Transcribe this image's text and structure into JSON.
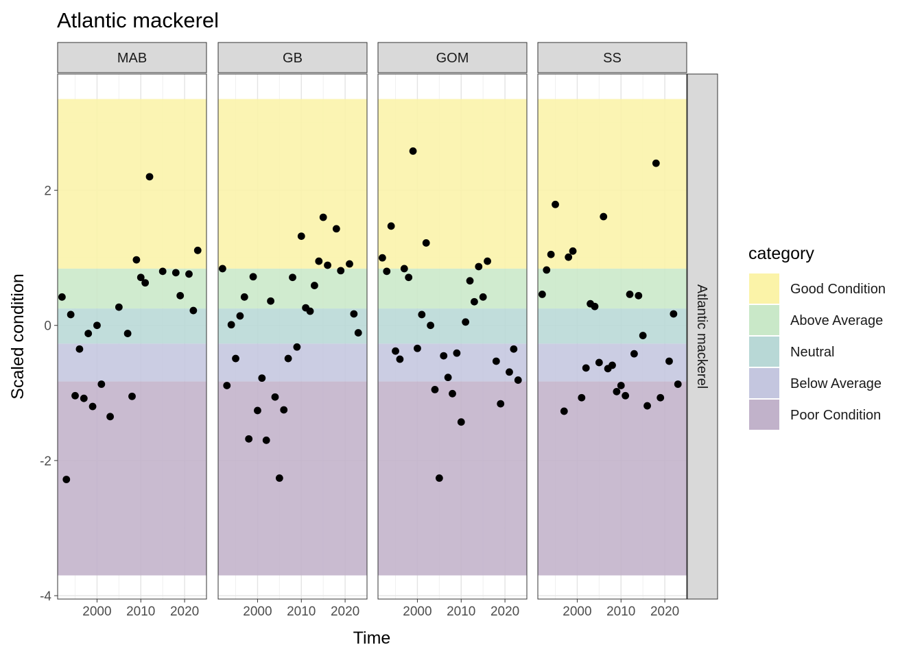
{
  "chart_data": {
    "type": "scatter",
    "title": "Atlantic mackerel",
    "xlabel": "Time",
    "ylabel": "Scaled condition",
    "row_strip": "Atlantic mackerel",
    "xlim": [
      1991,
      2025
    ],
    "ylim": [
      -4.05,
      3.72
    ],
    "x_ticks": [
      2000,
      2010,
      2020
    ],
    "y_ticks": [
      -4,
      -2,
      0,
      2
    ],
    "y_tick_labels": [
      "-4",
      "-2",
      "0",
      "2"
    ],
    "grid": true,
    "legend": {
      "title": "category",
      "position": "right"
    },
    "bands": [
      {
        "name": "Good Condition",
        "from": 0.84,
        "to": 3.35,
        "color": "#FBF3A8"
      },
      {
        "name": "Above Average",
        "from": 0.25,
        "to": 0.84,
        "color": "#C9E8C8"
      },
      {
        "name": "Neutral",
        "from": -0.27,
        "to": 0.25,
        "color": "#B8D8D6"
      },
      {
        "name": "Below Average",
        "from": -0.83,
        "to": -0.27,
        "color": "#C4C6DF"
      },
      {
        "name": "Poor Condition",
        "from": -3.7,
        "to": -0.83,
        "color": "#C1B2CA"
      }
    ],
    "panels": [
      {
        "name": "MAB",
        "points": [
          [
            1992,
            0.42
          ],
          [
            1993,
            -2.28
          ],
          [
            1994,
            0.16
          ],
          [
            1995,
            -1.04
          ],
          [
            1996,
            -0.35
          ],
          [
            1997,
            -1.08
          ],
          [
            1998,
            -0.12
          ],
          [
            1999,
            -1.2
          ],
          [
            2000,
            0.0
          ],
          [
            2001,
            -0.87
          ],
          [
            2003,
            -1.35
          ],
          [
            2005,
            0.27
          ],
          [
            2007,
            -0.12
          ],
          [
            2008,
            -1.05
          ],
          [
            2009,
            0.97
          ],
          [
            2010,
            0.71
          ],
          [
            2011,
            0.63
          ],
          [
            2012,
            2.2
          ],
          [
            2015,
            0.8
          ],
          [
            2018,
            0.78
          ],
          [
            2019,
            0.44
          ],
          [
            2021,
            0.76
          ],
          [
            2022,
            0.22
          ],
          [
            2023,
            1.11
          ]
        ]
      },
      {
        "name": "GB",
        "points": [
          [
            1992,
            0.84
          ],
          [
            1993,
            -0.89
          ],
          [
            1994,
            0.01
          ],
          [
            1995,
            -0.49
          ],
          [
            1996,
            0.14
          ],
          [
            1997,
            0.42
          ],
          [
            1998,
            -1.68
          ],
          [
            1999,
            0.72
          ],
          [
            2000,
            -1.26
          ],
          [
            2001,
            -0.78
          ],
          [
            2002,
            -1.7
          ],
          [
            2003,
            0.36
          ],
          [
            2004,
            -1.06
          ],
          [
            2005,
            -2.26
          ],
          [
            2006,
            -1.25
          ],
          [
            2007,
            -0.49
          ],
          [
            2008,
            0.71
          ],
          [
            2009,
            -0.32
          ],
          [
            2010,
            1.32
          ],
          [
            2011,
            0.26
          ],
          [
            2012,
            0.21
          ],
          [
            2013,
            0.59
          ],
          [
            2014,
            0.95
          ],
          [
            2015,
            1.6
          ],
          [
            2016,
            0.89
          ],
          [
            2018,
            1.43
          ],
          [
            2019,
            0.81
          ],
          [
            2021,
            0.91
          ],
          [
            2022,
            0.17
          ],
          [
            2023,
            -0.11
          ]
        ]
      },
      {
        "name": "GOM",
        "points": [
          [
            1992,
            1.0
          ],
          [
            1993,
            0.8
          ],
          [
            1994,
            1.47
          ],
          [
            1995,
            -0.38
          ],
          [
            1996,
            -0.5
          ],
          [
            1997,
            0.84
          ],
          [
            1998,
            0.71
          ],
          [
            1999,
            2.58
          ],
          [
            2000,
            -0.34
          ],
          [
            2001,
            0.16
          ],
          [
            2002,
            1.22
          ],
          [
            2003,
            0.0
          ],
          [
            2004,
            -0.95
          ],
          [
            2005,
            -2.26
          ],
          [
            2006,
            -0.45
          ],
          [
            2007,
            -0.77
          ],
          [
            2008,
            -1.01
          ],
          [
            2009,
            -0.41
          ],
          [
            2010,
            -1.43
          ],
          [
            2011,
            0.05
          ],
          [
            2012,
            0.66
          ],
          [
            2013,
            0.35
          ],
          [
            2014,
            0.87
          ],
          [
            2015,
            0.42
          ],
          [
            2016,
            0.95
          ],
          [
            2018,
            -0.53
          ],
          [
            2019,
            -1.16
          ],
          [
            2021,
            -0.69
          ],
          [
            2022,
            -0.35
          ],
          [
            2023,
            -0.81
          ]
        ]
      },
      {
        "name": "SS",
        "points": [
          [
            1992,
            0.46
          ],
          [
            1993,
            0.82
          ],
          [
            1994,
            1.05
          ],
          [
            1995,
            1.79
          ],
          [
            1997,
            -1.27
          ],
          [
            1998,
            1.01
          ],
          [
            1999,
            1.1
          ],
          [
            2001,
            -1.07
          ],
          [
            2002,
            -0.63
          ],
          [
            2003,
            0.32
          ],
          [
            2004,
            0.28
          ],
          [
            2005,
            -0.55
          ],
          [
            2006,
            1.61
          ],
          [
            2007,
            -0.64
          ],
          [
            2008,
            -0.59
          ],
          [
            2009,
            -0.98
          ],
          [
            2010,
            -0.89
          ],
          [
            2011,
            -1.04
          ],
          [
            2012,
            0.46
          ],
          [
            2013,
            -0.42
          ],
          [
            2014,
            0.44
          ],
          [
            2015,
            -0.15
          ],
          [
            2016,
            -1.19
          ],
          [
            2018,
            2.4
          ],
          [
            2019,
            -1.07
          ],
          [
            2021,
            -0.53
          ],
          [
            2022,
            0.17
          ],
          [
            2023,
            -0.87
          ]
        ]
      }
    ]
  }
}
